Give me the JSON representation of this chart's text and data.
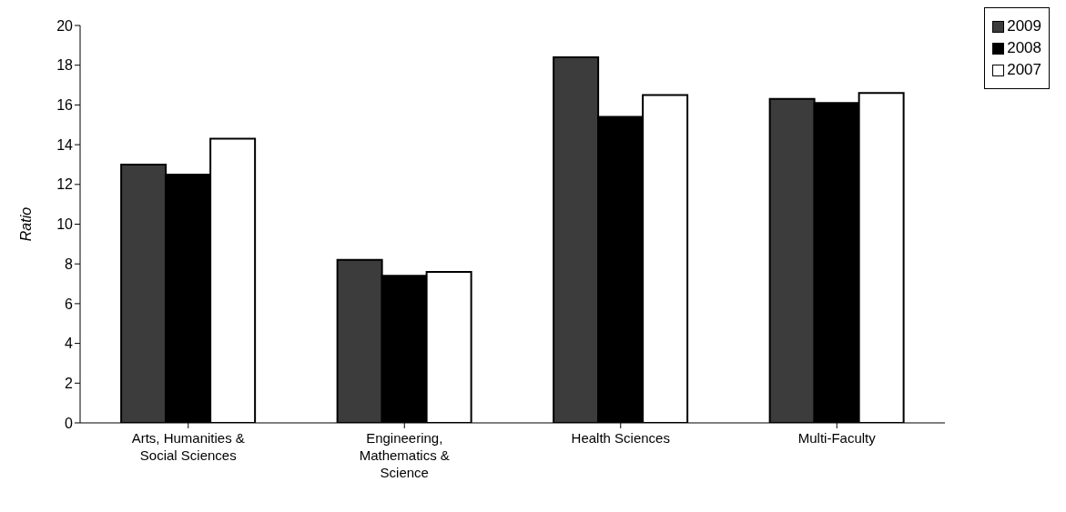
{
  "chart_data": {
    "type": "bar",
    "ylabel": "Ratio",
    "categories": [
      "Arts, Humanities & Social Sciences",
      "Engineering, Mathematics & Science",
      "Health Sciences",
      "Multi-Faculty"
    ],
    "series": [
      {
        "name": "2009",
        "color": "#3c3c3c",
        "values": [
          13.0,
          8.2,
          18.4,
          16.3
        ]
      },
      {
        "name": "2008",
        "color": "#000000",
        "values": [
          12.5,
          7.4,
          15.4,
          16.1
        ]
      },
      {
        "name": "2007",
        "color": "#ffffff",
        "values": [
          14.3,
          7.6,
          16.5,
          16.6
        ]
      }
    ],
    "ylim": [
      0,
      20
    ],
    "yticks": [
      0,
      2,
      4,
      6,
      8,
      10,
      12,
      14,
      16,
      18,
      20
    ],
    "grid": false,
    "legend": "top right"
  }
}
